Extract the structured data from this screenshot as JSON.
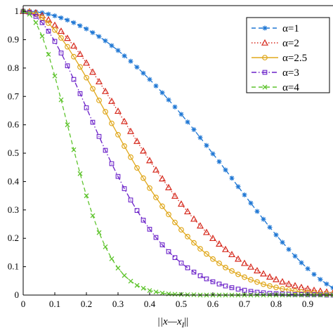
{
  "chart_data": {
    "type": "line",
    "xlabel": "||x—x",
    "xlabel_sub": "I",
    "xlabel_end": "||",
    "ylabel": "",
    "xlim": [
      0,
      0.98
    ],
    "ylim": [
      0,
      1.02
    ],
    "grid": false,
    "legend_placement": "top-right",
    "x_ticks": [
      {
        "value": 0,
        "label": "0"
      },
      {
        "value": 0.1,
        "label": "0.1"
      },
      {
        "value": 0.2,
        "label": "0.2"
      },
      {
        "value": 0.3,
        "label": "0.3"
      },
      {
        "value": 0.4,
        "label": "0.4"
      },
      {
        "value": 0.5,
        "label": "0.5"
      },
      {
        "value": 0.6,
        "label": "0.6"
      },
      {
        "value": 0.7,
        "label": "0.7"
      },
      {
        "value": 0.8,
        "label": "0.8"
      },
      {
        "value": 0.9,
        "label": "0.9"
      }
    ],
    "y_ticks": [
      {
        "value": 0,
        "label": "0"
      },
      {
        "value": 0.1,
        "label": "0.1"
      },
      {
        "value": 0.2,
        "label": "0.2"
      },
      {
        "value": 0.3,
        "label": "0.3"
      },
      {
        "value": 0.4,
        "label": "0.4"
      },
      {
        "value": 0.5,
        "label": "0.5"
      },
      {
        "value": 0.6,
        "label": "0.6"
      },
      {
        "value": 0.7,
        "label": "0.7"
      },
      {
        "value": 0.8,
        "label": "0.8"
      },
      {
        "value": 0.9,
        "label": "0.9"
      },
      {
        "value": 1,
        "label": "1"
      }
    ],
    "x": [
      0.0,
      0.02,
      0.04,
      0.06,
      0.08,
      0.1,
      0.12,
      0.14,
      0.16,
      0.18,
      0.2,
      0.22,
      0.24,
      0.26,
      0.28,
      0.3,
      0.32,
      0.34,
      0.36,
      0.38,
      0.4,
      0.42,
      0.44,
      0.46,
      0.48,
      0.5,
      0.52,
      0.54,
      0.56,
      0.58,
      0.6,
      0.62,
      0.64,
      0.66,
      0.68,
      0.7,
      0.72,
      0.74,
      0.76,
      0.78,
      0.8,
      0.82,
      0.84,
      0.86,
      0.88,
      0.9,
      0.92,
      0.94,
      0.96,
      0.98
    ],
    "series": [
      {
        "name": "α=1",
        "color": "#1f77d4",
        "line": "dashed",
        "marker": "asterisk",
        "values": [
          1.0,
          1.0,
          0.998,
          0.995,
          0.99,
          0.984,
          0.977,
          0.969,
          0.96,
          0.949,
          0.938,
          0.925,
          0.911,
          0.896,
          0.879,
          0.862,
          0.843,
          0.824,
          0.803,
          0.782,
          0.76,
          0.737,
          0.713,
          0.688,
          0.663,
          0.637,
          0.61,
          0.583,
          0.555,
          0.527,
          0.498,
          0.47,
          0.441,
          0.412,
          0.382,
          0.353,
          0.324,
          0.295,
          0.267,
          0.239,
          0.212,
          0.186,
          0.161,
          0.137,
          0.114,
          0.093,
          0.073,
          0.055,
          0.039,
          0.025
        ]
      },
      {
        "name": "α=2",
        "color": "#d62a1e",
        "line": "dotted",
        "marker": "triangle",
        "values": [
          1.0,
          0.999,
          0.995,
          0.985,
          0.97,
          0.951,
          0.93,
          0.905,
          0.878,
          0.849,
          0.818,
          0.786,
          0.752,
          0.718,
          0.683,
          0.648,
          0.612,
          0.577,
          0.542,
          0.508,
          0.474,
          0.441,
          0.41,
          0.379,
          0.349,
          0.321,
          0.294,
          0.268,
          0.244,
          0.221,
          0.2,
          0.18,
          0.161,
          0.143,
          0.127,
          0.112,
          0.099,
          0.086,
          0.075,
          0.064,
          0.055,
          0.047,
          0.039,
          0.033,
          0.027,
          0.022,
          0.017,
          0.014,
          0.011,
          0.008
        ]
      },
      {
        "name": "α=2.5",
        "color": "#e0a81c",
        "line": "solid",
        "marker": "circle",
        "values": [
          1.0,
          0.998,
          0.99,
          0.977,
          0.958,
          0.934,
          0.906,
          0.875,
          0.84,
          0.804,
          0.766,
          0.727,
          0.686,
          0.646,
          0.605,
          0.565,
          0.525,
          0.486,
          0.448,
          0.412,
          0.377,
          0.344,
          0.313,
          0.284,
          0.256,
          0.23,
          0.206,
          0.184,
          0.163,
          0.145,
          0.127,
          0.112,
          0.097,
          0.085,
          0.073,
          0.063,
          0.054,
          0.046,
          0.038,
          0.032,
          0.027,
          0.022,
          0.018,
          0.014,
          0.011,
          0.009,
          0.007,
          0.005,
          0.004,
          0.003
        ]
      },
      {
        "name": "α=3",
        "color": "#6a20c8",
        "line": "dashdot",
        "marker": "square",
        "values": [
          1.0,
          0.996,
          0.982,
          0.96,
          0.93,
          0.894,
          0.853,
          0.808,
          0.76,
          0.71,
          0.66,
          0.609,
          0.559,
          0.51,
          0.463,
          0.418,
          0.375,
          0.335,
          0.298,
          0.264,
          0.232,
          0.203,
          0.177,
          0.153,
          0.132,
          0.113,
          0.096,
          0.081,
          0.068,
          0.057,
          0.047,
          0.039,
          0.032,
          0.026,
          0.021,
          0.017,
          0.013,
          0.01,
          0.008,
          0.006,
          0.005,
          0.004,
          0.003,
          0.002,
          0.002,
          0.001,
          0.001,
          0.001,
          0.0,
          0.0
        ]
      },
      {
        "name": "α=4",
        "color": "#5fc42e",
        "line": "dashed",
        "marker": "x",
        "values": [
          1.0,
          0.99,
          0.96,
          0.912,
          0.848,
          0.772,
          0.688,
          0.6,
          0.512,
          0.428,
          0.35,
          0.28,
          0.22,
          0.17,
          0.128,
          0.095,
          0.069,
          0.049,
          0.034,
          0.024,
          0.016,
          0.011,
          0.007,
          0.004,
          0.003,
          0.002,
          0.001,
          0.001,
          0.0,
          0.0,
          0.0,
          0.0,
          0.0,
          0.0,
          0.0,
          0.0,
          0.0,
          0.0,
          0.0,
          0.0,
          0.0,
          0.0,
          0.0,
          0.0,
          0.0,
          0.0,
          0.0,
          0.0,
          0.0,
          0.0
        ]
      }
    ]
  }
}
